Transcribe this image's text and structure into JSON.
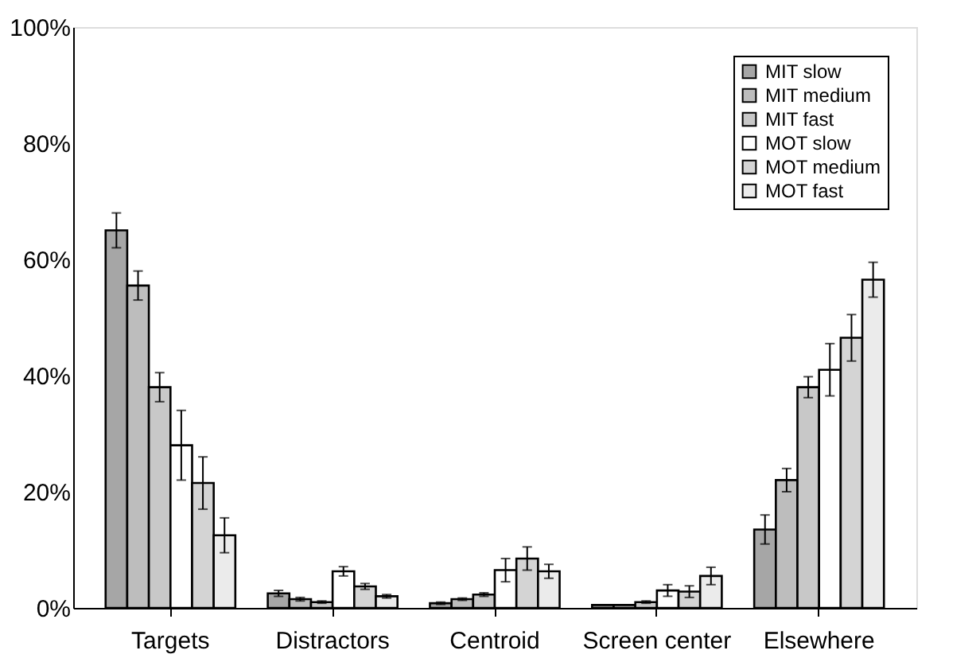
{
  "chart_data": {
    "type": "bar",
    "categories": [
      "Targets",
      "Distractors",
      "Centroid",
      "Screen center",
      "Elsewhere"
    ],
    "ylim": [
      0,
      100
    ],
    "yticks": [
      {
        "value": 0,
        "label": "0%"
      },
      {
        "value": 20,
        "label": "20%"
      },
      {
        "value": 40,
        "label": "40%"
      },
      {
        "value": 60,
        "label": "60%"
      },
      {
        "value": 80,
        "label": "80%"
      },
      {
        "value": 100,
        "label": "100%"
      }
    ],
    "grid": false,
    "legend": "top right",
    "series": [
      {
        "name": "MIT slow",
        "color": "#a6a6a6",
        "values": [
          65,
          2.5,
          0.8,
          0.5,
          13.5
        ],
        "errors": [
          3,
          0.5,
          0.2,
          null,
          2.5
        ]
      },
      {
        "name": "MIT medium",
        "color": "#bdbdbd",
        "values": [
          55.5,
          1.5,
          1.5,
          0.5,
          22
        ],
        "errors": [
          2.5,
          0.3,
          0.2,
          null,
          2
        ]
      },
      {
        "name": "MIT fast",
        "color": "#c8c8c8",
        "values": [
          38,
          1,
          2.3,
          1,
          38
        ],
        "errors": [
          2.5,
          0.2,
          0.3,
          0.2,
          1.8
        ]
      },
      {
        "name": "MOT slow",
        "color": "#ffffff",
        "values": [
          28,
          6.3,
          6.5,
          3,
          41
        ],
        "errors": [
          6,
          0.8,
          2,
          1,
          4.5
        ]
      },
      {
        "name": "MOT medium",
        "color": "#d4d4d4",
        "values": [
          21.5,
          3.7,
          8.5,
          2.8,
          46.5
        ],
        "errors": [
          4.5,
          0.5,
          2,
          1,
          4
        ]
      },
      {
        "name": "MOT fast",
        "color": "#ebebeb",
        "values": [
          12.5,
          2,
          6.3,
          5.5,
          56.5
        ],
        "errors": [
          3,
          0.3,
          1.2,
          1.5,
          3
        ]
      }
    ]
  }
}
